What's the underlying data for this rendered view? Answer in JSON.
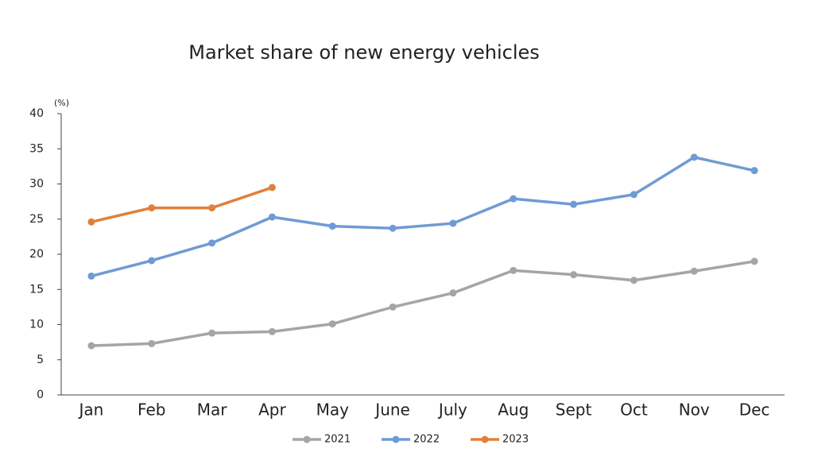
{
  "chart_data": {
    "type": "line",
    "title": "Market share of new energy vehicles",
    "y_unit": "(%)",
    "categories": [
      "Jan",
      "Feb",
      "Mar",
      "Apr",
      "May",
      "June",
      "July",
      "Aug",
      "Sept",
      "Oct",
      "Nov",
      "Dec"
    ],
    "series": [
      {
        "name": "2021",
        "color": "#a5a5a5",
        "values": [
          7.0,
          7.3,
          8.8,
          9.0,
          10.1,
          12.5,
          14.5,
          17.7,
          17.1,
          16.3,
          17.6,
          19.0
        ]
      },
      {
        "name": "2022",
        "color": "#6f9bd4",
        "values": [
          16.9,
          19.1,
          21.6,
          25.3,
          24.0,
          23.7,
          24.4,
          27.9,
          27.1,
          28.5,
          33.8,
          31.9
        ]
      },
      {
        "name": "2023",
        "color": "#e0803c",
        "values": [
          24.6,
          26.6,
          26.6,
          29.5,
          null,
          null,
          null,
          null,
          null,
          null,
          null,
          null
        ]
      }
    ],
    "ylim": [
      0,
      40
    ],
    "yticks": [
      0,
      5,
      10,
      15,
      20,
      25,
      30,
      35,
      40
    ],
    "grid": false,
    "legend": "bottom"
  }
}
